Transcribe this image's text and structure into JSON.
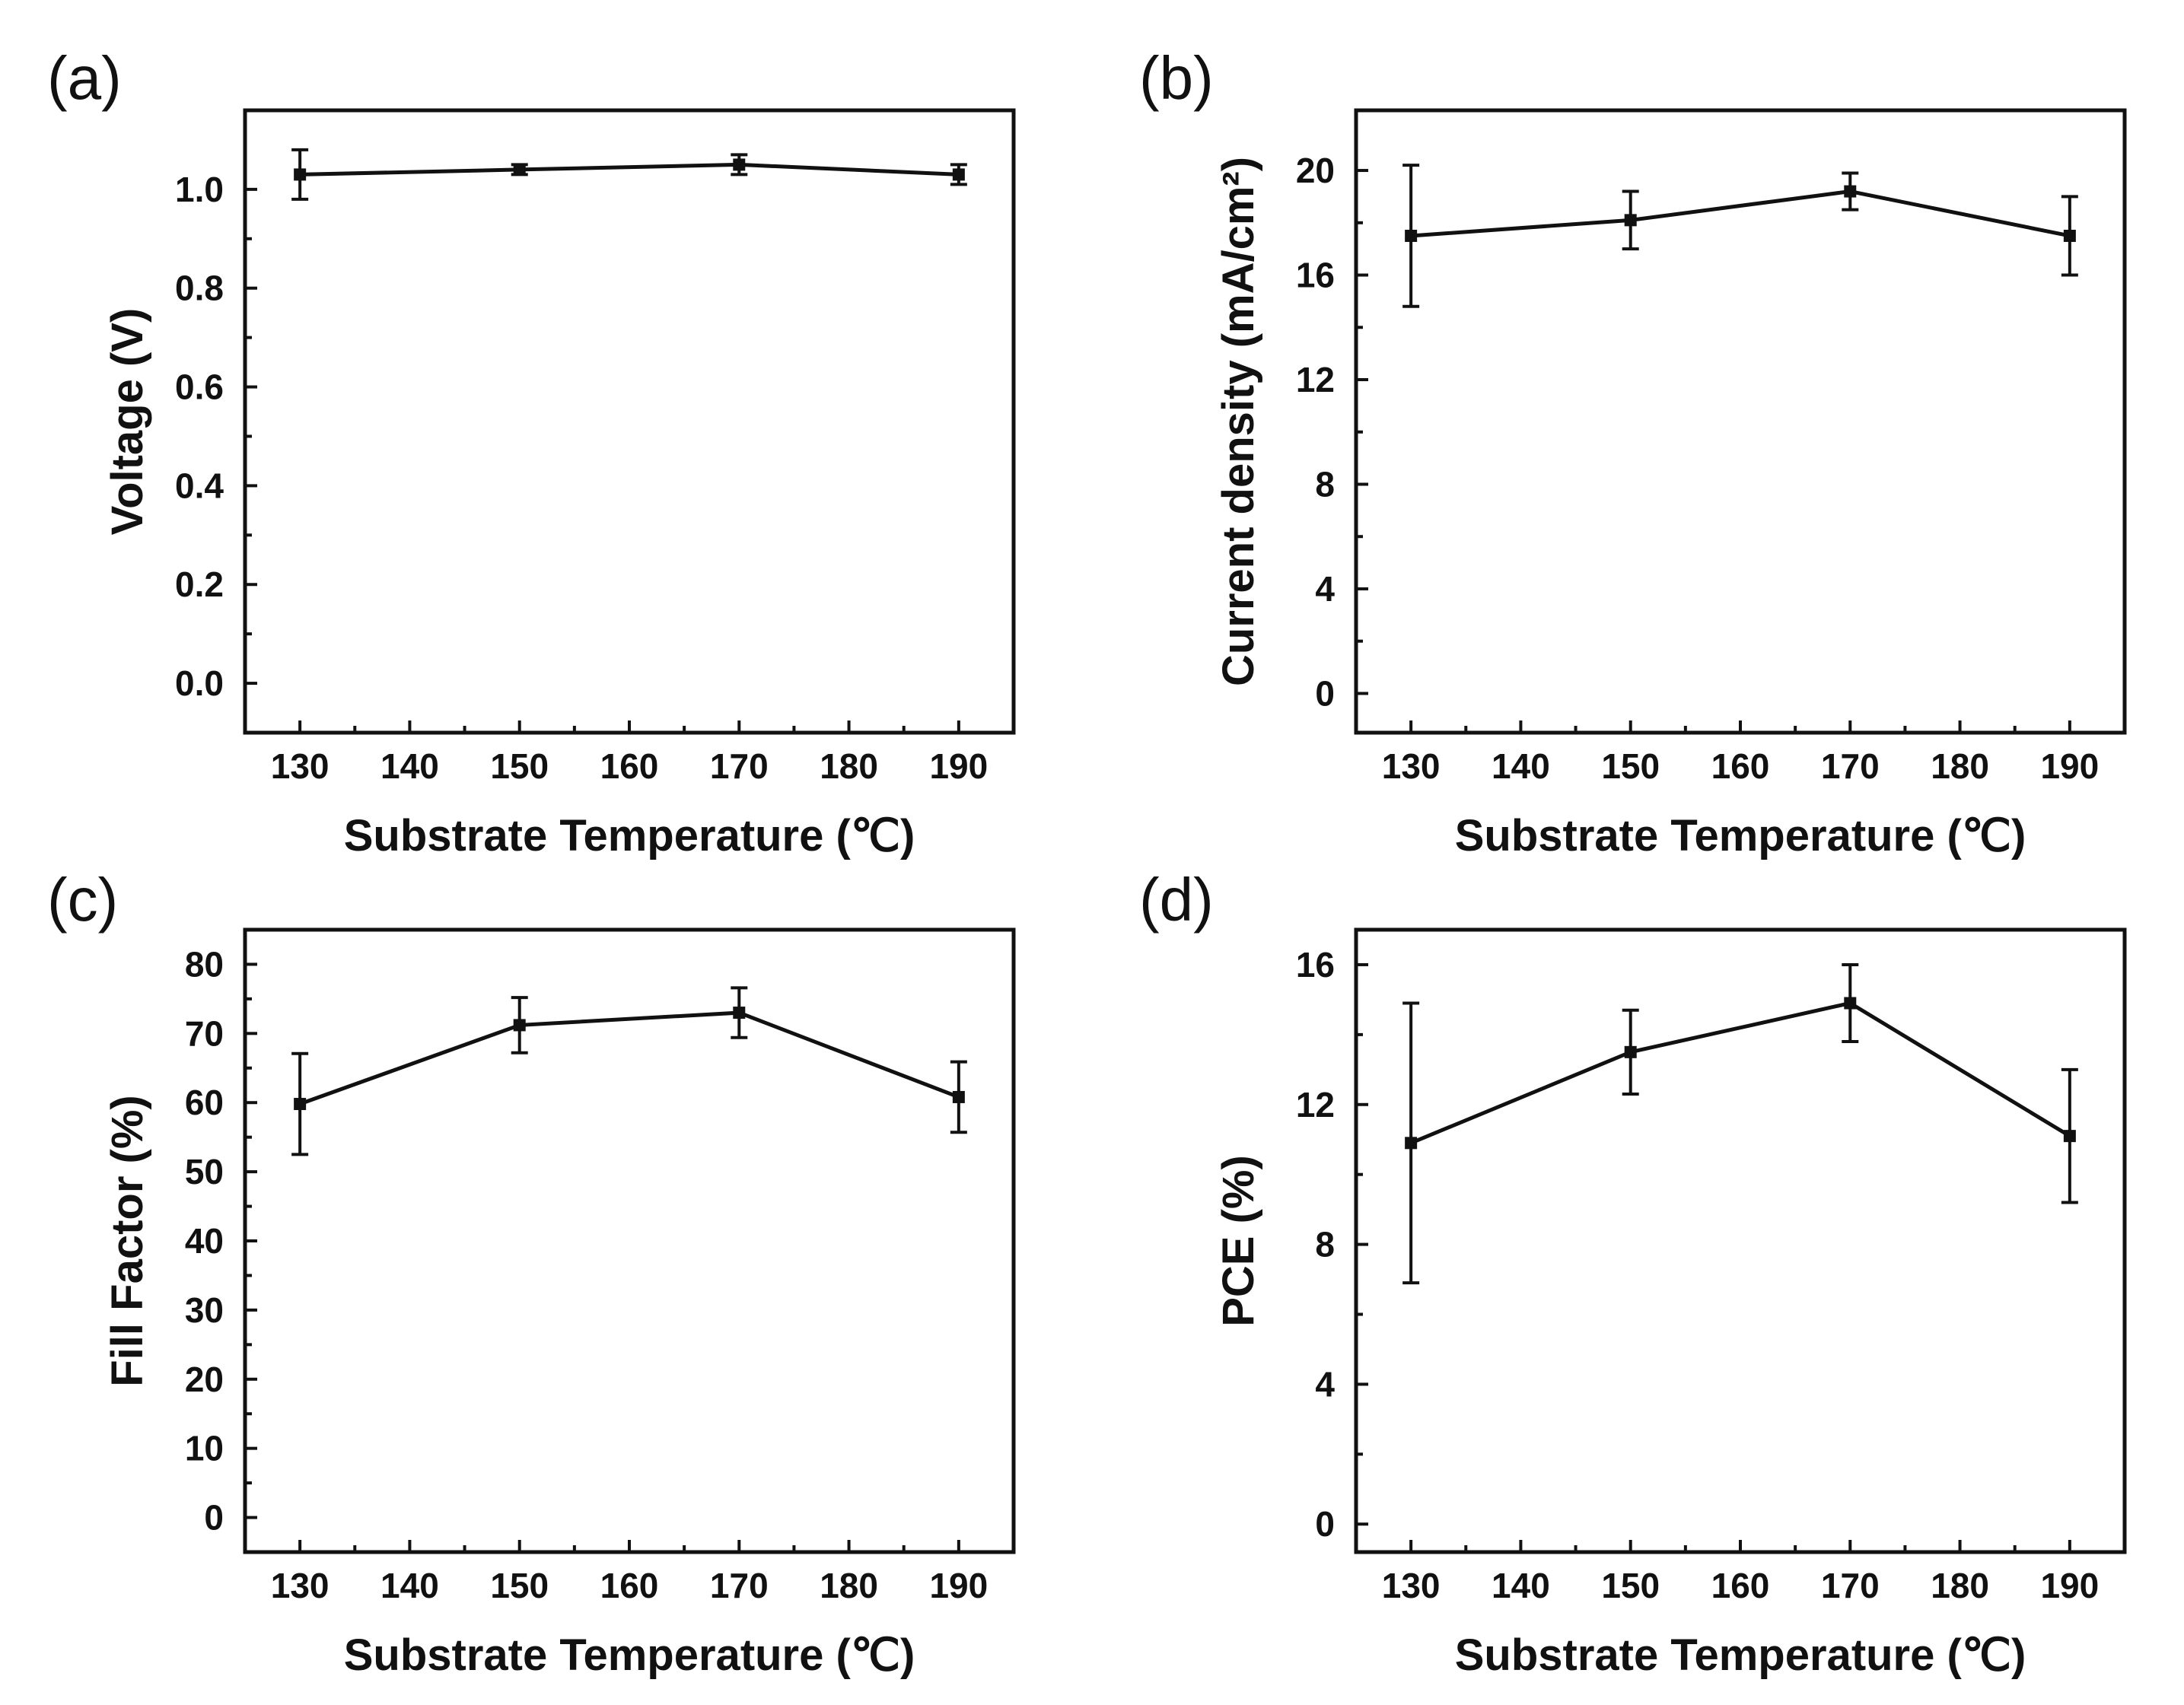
{
  "chart_data": [
    {
      "type": "line",
      "panel_label": "(a)",
      "xlabel": "Substrate Temperature (℃)",
      "ylabel": "Voltage (V)",
      "xlim": [
        125,
        195
      ],
      "ylim": [
        -0.1,
        1.16
      ],
      "xticks": [
        130,
        140,
        150,
        160,
        170,
        180,
        190
      ],
      "yticks": [
        0.0,
        0.2,
        0.4,
        0.6,
        0.8,
        1.0
      ],
      "ytick_labels": [
        "0.0",
        "0.2",
        "0.4",
        "0.6",
        "0.8",
        "1.0"
      ],
      "x": [
        130,
        150,
        170,
        190
      ],
      "y": [
        1.03,
        1.04,
        1.05,
        1.03
      ],
      "error": [
        0.05,
        0.01,
        0.02,
        0.02
      ]
    },
    {
      "type": "line",
      "panel_label": "(b)",
      "xlabel": "Substrate Temperature (℃)",
      "ylabel": "Current density (mA/cm²)",
      "xlim": [
        125,
        195
      ],
      "ylim": [
        -1.5,
        22.3
      ],
      "xticks": [
        130,
        140,
        150,
        160,
        170,
        180,
        190
      ],
      "yticks": [
        0,
        4,
        8,
        12,
        16,
        20
      ],
      "ytick_labels": [
        "0",
        "4",
        "8",
        "12",
        "16",
        "20"
      ],
      "x": [
        130,
        150,
        170,
        190
      ],
      "y": [
        17.5,
        18.1,
        19.2,
        17.5
      ],
      "error": [
        2.7,
        1.1,
        0.7,
        1.5
      ]
    },
    {
      "type": "line",
      "panel_label": "(c)",
      "xlabel": "Substrate Temperature (℃)",
      "ylabel": "Fill Factor (%)",
      "xlim": [
        125,
        195
      ],
      "ylim": [
        -5,
        85
      ],
      "xticks": [
        130,
        140,
        150,
        160,
        170,
        180,
        190
      ],
      "yticks": [
        0,
        10,
        20,
        30,
        40,
        50,
        60,
        70,
        80
      ],
      "ytick_labels": [
        "0",
        "10",
        "20",
        "30",
        "40",
        "50",
        "60",
        "70",
        "80"
      ],
      "x": [
        130,
        150,
        170,
        190
      ],
      "y": [
        59.8,
        71.2,
        73.0,
        60.8
      ],
      "error": [
        7.3,
        4.0,
        3.6,
        5.1
      ]
    },
    {
      "type": "line",
      "panel_label": "(d)",
      "xlabel": "Substrate Temperature (℃)",
      "ylabel": "PCE (%)",
      "xlim": [
        125,
        195
      ],
      "ylim": [
        -0.8,
        17.0
      ],
      "xticks": [
        130,
        140,
        150,
        160,
        170,
        180,
        190
      ],
      "yticks": [
        0,
        4,
        8,
        12,
        16
      ],
      "ytick_labels": [
        "0",
        "4",
        "8",
        "12",
        "16"
      ],
      "x": [
        130,
        150,
        170,
        190
      ],
      "y": [
        10.9,
        13.5,
        14.9,
        11.1
      ],
      "error": [
        4.0,
        1.2,
        1.1,
        1.9
      ]
    }
  ]
}
